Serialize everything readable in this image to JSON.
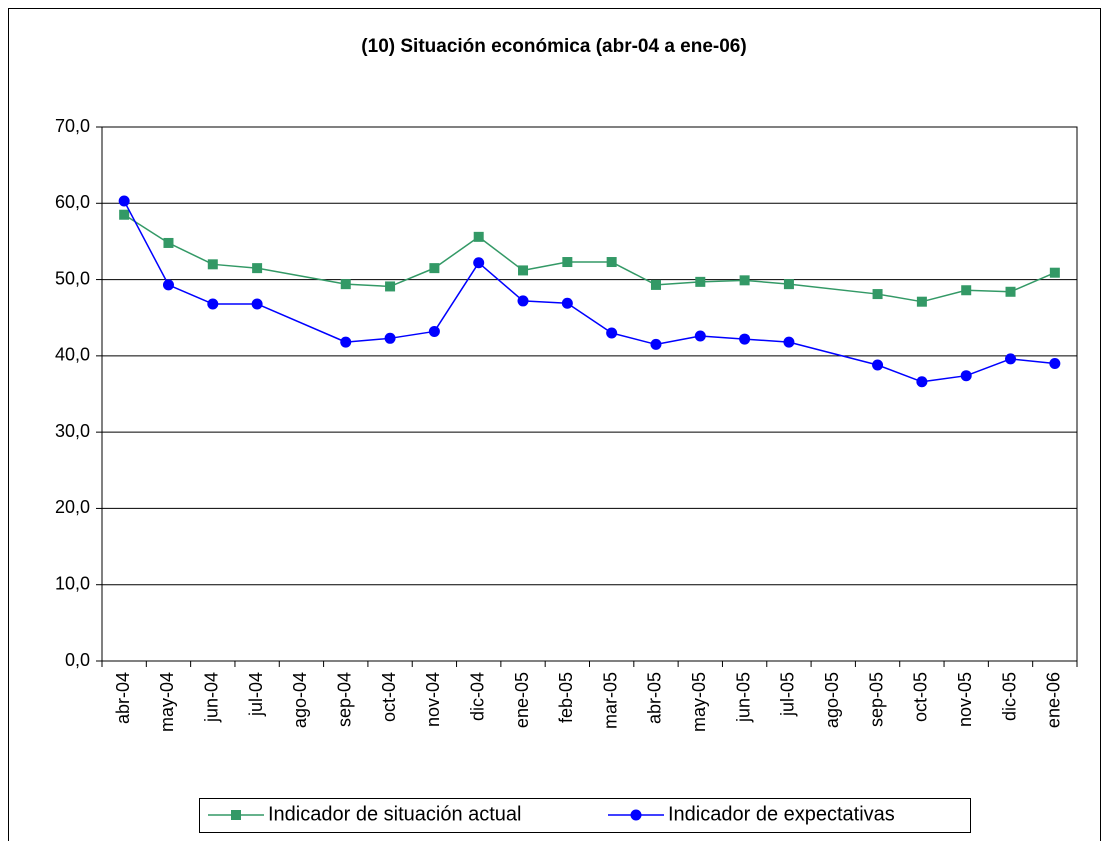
{
  "chart_data": {
    "type": "line",
    "title": "(10) Situación económica (abr-04 a ene-06)",
    "categories": [
      "abr-04",
      "may-04",
      "jun-04",
      "jul-04",
      "ago-04",
      "sep-04",
      "oct-04",
      "nov-04",
      "dic-04",
      "ene-05",
      "feb-05",
      "mar-05",
      "abr-05",
      "may-05",
      "jun-05",
      "jul-05",
      "ago-05",
      "sep-05",
      "oct-05",
      "nov-05",
      "dic-05",
      "ene-06"
    ],
    "series": [
      {
        "name": "Indicador de situación actual",
        "color": "#339966",
        "marker": "square",
        "values": [
          58.5,
          54.8,
          52.0,
          51.5,
          null,
          49.4,
          49.1,
          51.5,
          55.6,
          51.2,
          52.3,
          52.3,
          49.3,
          49.7,
          49.9,
          49.4,
          null,
          48.1,
          47.1,
          48.6,
          48.4,
          50.9
        ]
      },
      {
        "name": "Indicador de expectativas",
        "color": "#0000ff",
        "marker": "circle",
        "values": [
          60.3,
          49.3,
          46.8,
          46.8,
          null,
          41.8,
          42.3,
          43.2,
          52.2,
          47.2,
          46.9,
          43.0,
          41.5,
          42.6,
          42.2,
          41.8,
          null,
          38.8,
          36.6,
          37.4,
          39.6,
          39.0
        ]
      }
    ],
    "ylim": [
      0,
      70
    ],
    "yticks": [
      {
        "value": 0,
        "label": "0,0"
      },
      {
        "value": 10,
        "label": "10,0"
      },
      {
        "value": 20,
        "label": "20,0"
      },
      {
        "value": 30,
        "label": "30,0"
      },
      {
        "value": 40,
        "label": "40,0"
      },
      {
        "value": 50,
        "label": "50,0"
      },
      {
        "value": 60,
        "label": "60,0"
      },
      {
        "value": 70,
        "label": "70,0"
      }
    ],
    "grid": true,
    "legend": "bottom"
  }
}
